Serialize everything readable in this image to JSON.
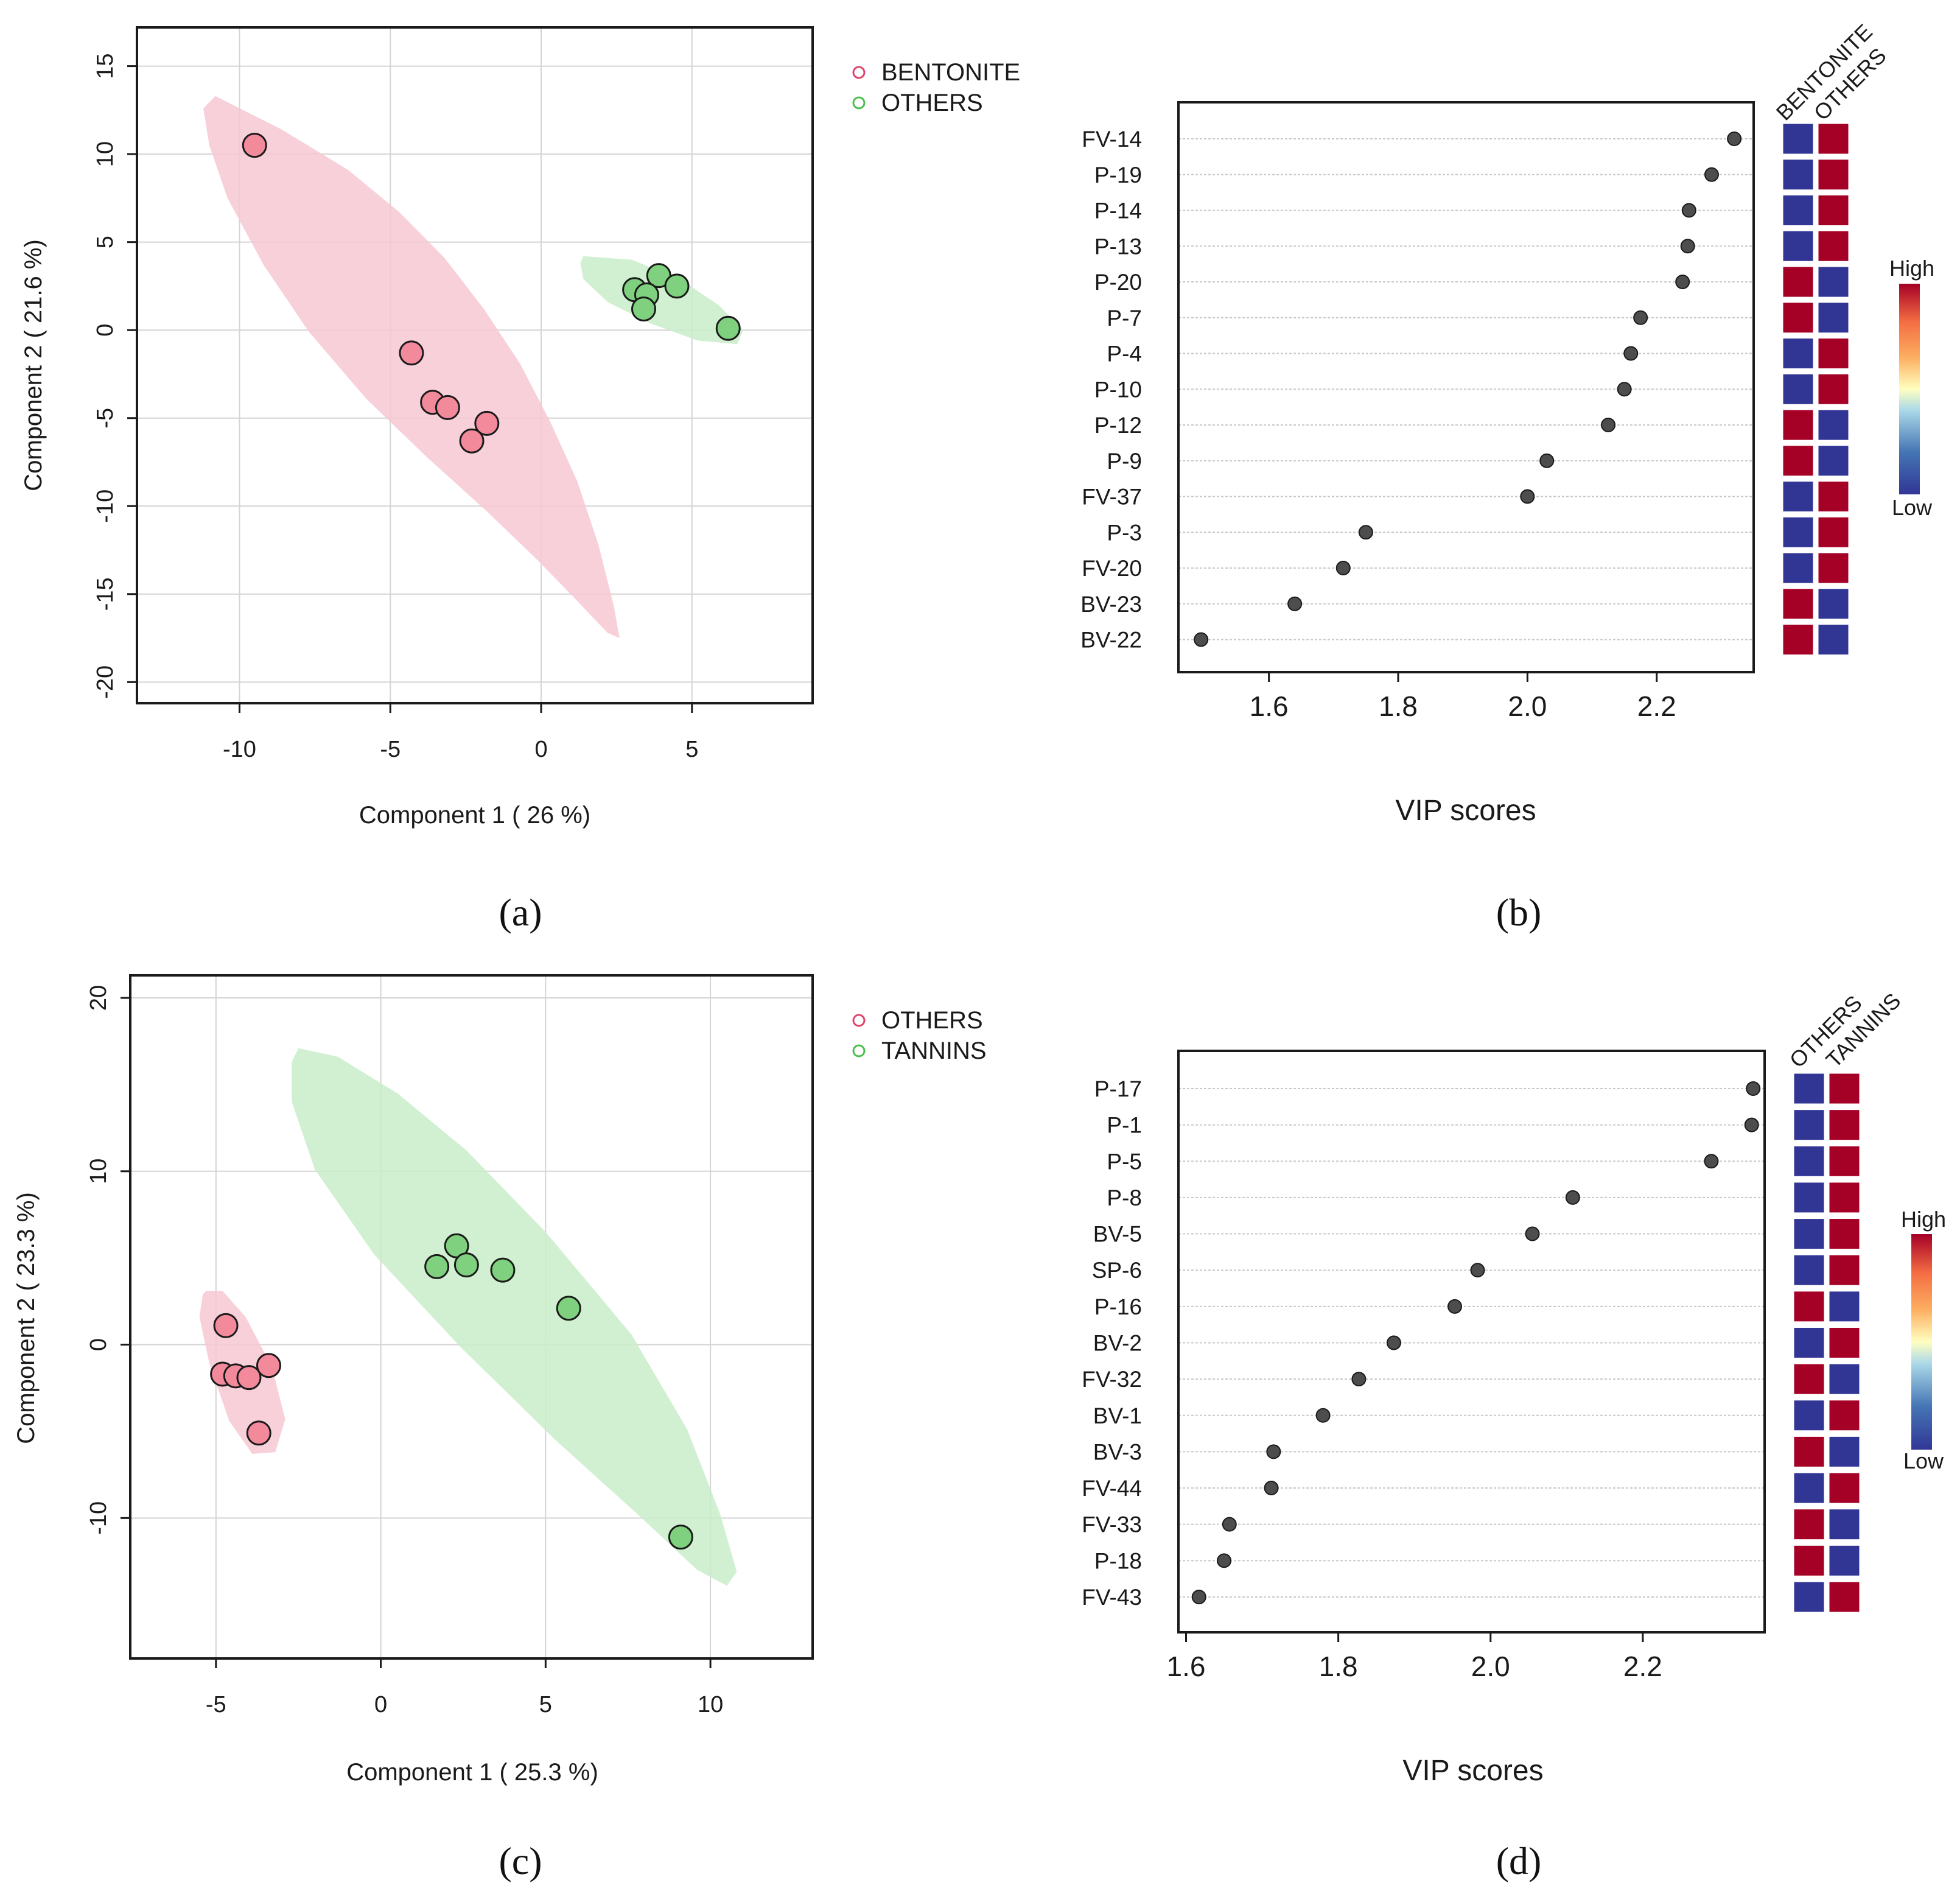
{
  "chart_data": [
    {
      "panel": "a",
      "type": "scatter",
      "caption": "(a)",
      "xlabel": "Component 1 ( 26 %)",
      "ylabel": "Component 2 ( 21.6 %)",
      "xlim": [
        -13.4,
        9
      ],
      "ylim": [
        -21.2,
        17.2
      ],
      "xticks": [
        -10,
        -5,
        0,
        5
      ],
      "yticks": [
        -20,
        -15,
        -10,
        -5,
        0,
        5,
        10,
        15
      ],
      "legend": [
        "BENTONITE",
        "OTHERS"
      ],
      "series": [
        {
          "name": "BENTONITE",
          "color": "#f28a9c",
          "ellipse_color": "#f7c8d2",
          "points": [
            [
              -9.5,
              10.5
            ],
            [
              -4.3,
              -1.3
            ],
            [
              -3.6,
              -4.1
            ],
            [
              -3.1,
              -4.4
            ],
            [
              -1.8,
              -5.3
            ],
            [
              -2.3,
              -6.3
            ]
          ],
          "ellipse": [
            [
              -10.8,
              13.3
            ],
            [
              -8.6,
              11.4
            ],
            [
              -6.4,
              9.1
            ],
            [
              -4.7,
              6.7
            ],
            [
              -3.2,
              4.1
            ],
            [
              -1.9,
              1.2
            ],
            [
              -0.7,
              -1.9
            ],
            [
              0.3,
              -5.2
            ],
            [
              1.2,
              -8.6
            ],
            [
              1.9,
              -12.2
            ],
            [
              2.4,
              -15.6
            ],
            [
              2.6,
              -17.5
            ],
            [
              2.2,
              -17.2
            ],
            [
              1.2,
              -15.4
            ],
            [
              -0.1,
              -13.1
            ],
            [
              -1.8,
              -10.3
            ],
            [
              -3.8,
              -7.2
            ],
            [
              -5.8,
              -3.9
            ],
            [
              -7.7,
              -0.1
            ],
            [
              -9.2,
              3.7
            ],
            [
              -10.4,
              7.5
            ],
            [
              -11.0,
              10.5
            ],
            [
              -11.2,
              12.6
            ]
          ]
        },
        {
          "name": "OTHERS",
          "color": "#7fd17f",
          "ellipse_color": "#c9ecc9",
          "points": [
            [
              3.9,
              3.1
            ],
            [
              4.5,
              2.5
            ],
            [
              3.1,
              2.3
            ],
            [
              3.5,
              2.0
            ],
            [
              3.4,
              1.2
            ],
            [
              6.2,
              0.1
            ]
          ],
          "ellipse": [
            [
              1.4,
              4.2
            ],
            [
              3.0,
              4.0
            ],
            [
              4.6,
              2.9
            ],
            [
              5.9,
              1.4
            ],
            [
              6.7,
              0.0
            ],
            [
              6.5,
              -0.8
            ],
            [
              5.2,
              -0.6
            ],
            [
              3.6,
              0.4
            ],
            [
              2.2,
              1.6
            ],
            [
              1.4,
              2.9
            ],
            [
              1.3,
              3.8
            ]
          ]
        }
      ]
    },
    {
      "panel": "b",
      "type": "dot",
      "caption": "(b)",
      "xlabel": "VIP scores",
      "xlim": [
        1.46,
        2.35
      ],
      "xticks": [
        1.6,
        1.8,
        2.0,
        2.2
      ],
      "tick_labels": [
        "1.6",
        "1.8",
        "2.0",
        "2.2"
      ],
      "groups": [
        "BENTONITE",
        "OTHERS"
      ],
      "features": [
        "FV-14",
        "P-19",
        "P-14",
        "P-13",
        "P-20",
        "P-7",
        "P-4",
        "P-10",
        "P-12",
        "P-9",
        "FV-37",
        "P-3",
        "FV-20",
        "BV-23",
        "BV-22"
      ],
      "values": [
        2.32,
        2.285,
        2.25,
        2.248,
        2.24,
        2.175,
        2.16,
        2.15,
        2.125,
        2.03,
        2.0,
        1.75,
        1.715,
        1.64,
        1.495
      ],
      "heat": [
        [
          "L",
          "H"
        ],
        [
          "L",
          "H"
        ],
        [
          "L",
          "H"
        ],
        [
          "L",
          "H"
        ],
        [
          "H",
          "L"
        ],
        [
          "H",
          "L"
        ],
        [
          "L",
          "H"
        ],
        [
          "L",
          "H"
        ],
        [
          "H",
          "L"
        ],
        [
          "H",
          "L"
        ],
        [
          "L",
          "H"
        ],
        [
          "L",
          "H"
        ],
        [
          "L",
          "H"
        ],
        [
          "H",
          "L"
        ],
        [
          "H",
          "L"
        ]
      ],
      "legend": {
        "high": "High",
        "low": "Low"
      }
    },
    {
      "panel": "c",
      "type": "scatter",
      "caption": "(c)",
      "xlabel": "Component 1 ( 25.3 %)",
      "ylabel": "Component 2 ( 23.3 %)",
      "xlim": [
        -7.6,
        13.1
      ],
      "ylim": [
        -18.1,
        21.3
      ],
      "xticks": [
        -5,
        0,
        5,
        10
      ],
      "yticks": [
        -10,
        0,
        10,
        20
      ],
      "legend": [
        "OTHERS",
        "TANNINS"
      ],
      "series": [
        {
          "name": "OTHERS",
          "color": "#f28a9c",
          "ellipse_color": "#f7c8d2",
          "points": [
            [
              -4.7,
              1.1
            ],
            [
              -4.8,
              -1.7
            ],
            [
              -4.4,
              -1.8
            ],
            [
              -4.0,
              -1.9
            ],
            [
              -3.4,
              -1.2
            ],
            [
              -3.7,
              -5.1
            ]
          ],
          "ellipse": [
            [
              -5.3,
              3.1
            ],
            [
              -4.8,
              3.1
            ],
            [
              -4.1,
              1.6
            ],
            [
              -3.3,
              -1.3
            ],
            [
              -2.9,
              -4.3
            ],
            [
              -3.2,
              -6.2
            ],
            [
              -3.9,
              -6.3
            ],
            [
              -4.6,
              -4.4
            ],
            [
              -5.2,
              -1.1
            ],
            [
              -5.5,
              1.6
            ],
            [
              -5.4,
              2.9
            ]
          ]
        },
        {
          "name": "TANNINS",
          "color": "#7fd17f",
          "ellipse_color": "#c9ecc9",
          "points": [
            [
              2.3,
              5.7
            ],
            [
              1.7,
              4.5
            ],
            [
              2.6,
              4.6
            ],
            [
              3.7,
              4.3
            ],
            [
              5.7,
              2.1
            ],
            [
              9.1,
              -11.1
            ]
          ],
          "ellipse": [
            [
              -2.5,
              17.1
            ],
            [
              -1.3,
              16.6
            ],
            [
              0.5,
              14.5
            ],
            [
              2.6,
              11.2
            ],
            [
              5.0,
              6.5
            ],
            [
              7.6,
              0.6
            ],
            [
              9.3,
              -4.9
            ],
            [
              10.3,
              -9.8
            ],
            [
              10.8,
              -13.1
            ],
            [
              10.5,
              -13.9
            ],
            [
              9.6,
              -13.0
            ],
            [
              7.8,
              -9.8
            ],
            [
              5.3,
              -5.5
            ],
            [
              2.4,
              -0.1
            ],
            [
              -0.2,
              5.2
            ],
            [
              -2.0,
              10.1
            ],
            [
              -2.7,
              14.0
            ],
            [
              -2.7,
              16.3
            ]
          ]
        }
      ]
    },
    {
      "panel": "d",
      "type": "dot",
      "caption": "(d)",
      "xlabel": "VIP scores",
      "xlim": [
        1.59,
        2.36
      ],
      "xticks": [
        1.6,
        1.8,
        2.0,
        2.2
      ],
      "tick_labels": [
        "1.6",
        "1.8",
        "2.0",
        "2.2"
      ],
      "groups": [
        "OTHERS",
        "TANNINS"
      ],
      "features": [
        "P-17",
        "P-1",
        "P-5",
        "P-8",
        "BV-5",
        "SP-6",
        "P-16",
        "BV-2",
        "FV-32",
        "BV-1",
        "BV-3",
        "FV-44",
        "FV-33",
        "P-18",
        "FV-43"
      ],
      "values": [
        2.345,
        2.343,
        2.29,
        2.108,
        2.055,
        1.983,
        1.953,
        1.873,
        1.827,
        1.78,
        1.715,
        1.712,
        1.657,
        1.65,
        1.617
      ],
      "heat": [
        [
          "L",
          "H"
        ],
        [
          "L",
          "H"
        ],
        [
          "L",
          "H"
        ],
        [
          "L",
          "H"
        ],
        [
          "L",
          "H"
        ],
        [
          "L",
          "H"
        ],
        [
          "H",
          "L"
        ],
        [
          "L",
          "H"
        ],
        [
          "H",
          "L"
        ],
        [
          "L",
          "H"
        ],
        [
          "H",
          "L"
        ],
        [
          "L",
          "H"
        ],
        [
          "H",
          "L"
        ],
        [
          "H",
          "L"
        ],
        [
          "L",
          "H"
        ]
      ],
      "legend": {
        "high": "High",
        "low": "Low"
      }
    }
  ],
  "colors": {
    "heat_high": "#a50026",
    "heat_low": "#313695",
    "marker_edge": "#1a1a1a",
    "dot_fill": "#4d4d4d",
    "grid": "#d4d4d4",
    "legend_bentonite": "#e0446a",
    "legend_others": "#4cbf4c"
  }
}
